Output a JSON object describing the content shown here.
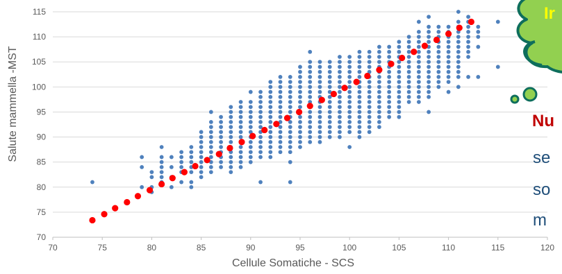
{
  "chart_data": {
    "type": "scatter",
    "xlabel": "Cellule Somatiche - SCS",
    "ylabel": "Salute mammella -MST",
    "xlim": [
      70,
      120
    ],
    "ylim": [
      70,
      115
    ],
    "x_ticks": [
      70,
      75,
      80,
      85,
      90,
      95,
      100,
      105,
      110,
      115,
      120
    ],
    "y_ticks": [
      70,
      75,
      80,
      85,
      90,
      95,
      100,
      105,
      110,
      115
    ],
    "grid": "horizontal",
    "series": [
      {
        "kind": "observed",
        "color": "#4f81bd",
        "columns": [
          {
            "x": 74,
            "y": [
              81
            ]
          },
          {
            "x": 79,
            "y": [
              80,
              84,
              86
            ]
          },
          {
            "x": 80,
            "y": [
              79,
              80,
              82,
              83
            ]
          },
          {
            "x": 81,
            "y": [
              81,
              82,
              83,
              84,
              85,
              86,
              88
            ]
          },
          {
            "x": 82,
            "y": [
              80,
              82,
              84,
              86
            ]
          },
          {
            "x": 83,
            "y": [
              81,
              83,
              84,
              85,
              86,
              87
            ]
          },
          {
            "x": 84,
            "y": [
              80,
              81,
              83,
              84,
              85,
              86,
              87,
              88
            ]
          },
          {
            "x": 85,
            "y": [
              82,
              83,
              84,
              85,
              86,
              87,
              88,
              89,
              90,
              91
            ]
          },
          {
            "x": 86,
            "y": [
              83,
              84,
              85,
              86,
              87,
              88,
              89,
              90,
              91,
              92,
              93,
              95
            ]
          },
          {
            "x": 87,
            "y": [
              84,
              85,
              86,
              87,
              88,
              89,
              90,
              91,
              92,
              93,
              94
            ]
          },
          {
            "x": 88,
            "y": [
              83,
              84,
              85,
              86,
              87,
              88,
              89,
              90,
              91,
              92,
              93,
              94,
              95,
              96
            ]
          },
          {
            "x": 89,
            "y": [
              84,
              85,
              86,
              87,
              88,
              89,
              90,
              91,
              92,
              93,
              94,
              95,
              96,
              97
            ]
          },
          {
            "x": 90,
            "y": [
              85,
              86,
              87,
              88,
              89,
              90,
              91,
              92,
              93,
              94,
              95,
              96,
              97,
              99
            ]
          },
          {
            "x": 91,
            "y": [
              81,
              86,
              87,
              88,
              89,
              90,
              91,
              92,
              93,
              94,
              95,
              96,
              97,
              98,
              99
            ]
          },
          {
            "x": 92,
            "y": [
              86,
              87,
              88,
              89,
              90,
              91,
              92,
              93,
              94,
              95,
              96,
              97,
              98,
              99,
              100,
              101
            ]
          },
          {
            "x": 93,
            "y": [
              87,
              88,
              89,
              90,
              91,
              92,
              93,
              94,
              95,
              96,
              97,
              98,
              99,
              100,
              101,
              102
            ]
          },
          {
            "x": 94,
            "y": [
              81,
              85,
              87,
              88,
              89,
              90,
              91,
              92,
              93,
              94,
              95,
              96,
              97,
              98,
              99,
              100,
              101,
              102
            ]
          },
          {
            "x": 95,
            "y": [
              88,
              89,
              90,
              91,
              92,
              93,
              94,
              95,
              96,
              97,
              98,
              99,
              100,
              101,
              102,
              103,
              104
            ]
          },
          {
            "x": 96,
            "y": [
              89,
              90,
              91,
              92,
              93,
              94,
              95,
              96,
              97,
              98,
              99,
              100,
              101,
              102,
              103,
              104,
              105,
              107
            ]
          },
          {
            "x": 97,
            "y": [
              89,
              90,
              91,
              92,
              93,
              94,
              95,
              96,
              97,
              98,
              99,
              100,
              101,
              102,
              103,
              104,
              105
            ]
          },
          {
            "x": 98,
            "y": [
              90,
              91,
              92,
              93,
              94,
              95,
              96,
              97,
              98,
              99,
              100,
              101,
              102,
              103,
              104,
              105
            ]
          },
          {
            "x": 99,
            "y": [
              90,
              91,
              92,
              93,
              94,
              95,
              96,
              97,
              98,
              99,
              100,
              101,
              102,
              103,
              104,
              105,
              106
            ]
          },
          {
            "x": 100,
            "y": [
              88,
              91,
              92,
              93,
              94,
              95,
              96,
              97,
              98,
              99,
              100,
              101,
              102,
              103,
              104,
              105,
              106
            ]
          },
          {
            "x": 101,
            "y": [
              90,
              91,
              92,
              93,
              94,
              95,
              96,
              97,
              98,
              99,
              100,
              101,
              102,
              103,
              104,
              105,
              106,
              107
            ]
          },
          {
            "x": 102,
            "y": [
              91,
              92,
              93,
              94,
              95,
              96,
              97,
              98,
              99,
              100,
              101,
              102,
              103,
              104,
              105,
              106,
              107
            ]
          },
          {
            "x": 103,
            "y": [
              92,
              93,
              94,
              95,
              96,
              97,
              98,
              99,
              100,
              101,
              102,
              103,
              104,
              105,
              106,
              107,
              108
            ]
          },
          {
            "x": 104,
            "y": [
              94,
              95,
              96,
              97,
              98,
              99,
              100,
              101,
              102,
              103,
              104,
              105,
              106,
              107,
              108
            ]
          },
          {
            "x": 105,
            "y": [
              94,
              95,
              96,
              97,
              98,
              99,
              100,
              101,
              102,
              103,
              104,
              105,
              106,
              107,
              108,
              109
            ]
          },
          {
            "x": 106,
            "y": [
              97,
              98,
              99,
              100,
              101,
              102,
              103,
              104,
              105,
              106,
              107,
              108,
              109,
              110
            ]
          },
          {
            "x": 107,
            "y": [
              97,
              98,
              99,
              100,
              101,
              102,
              103,
              104,
              105,
              106,
              107,
              108,
              109,
              110,
              111,
              113
            ]
          },
          {
            "x": 108,
            "y": [
              95,
              98,
              99,
              100,
              101,
              102,
              103,
              104,
              105,
              106,
              107,
              108,
              109,
              110,
              111,
              112,
              114
            ]
          },
          {
            "x": 109,
            "y": [
              100,
              101,
              102,
              103,
              104,
              105,
              106,
              107,
              108,
              109,
              110,
              111,
              112
            ]
          },
          {
            "x": 110,
            "y": [
              99,
              101,
              102,
              103,
              104,
              105,
              106,
              107,
              108,
              109,
              110,
              111,
              112
            ]
          },
          {
            "x": 111,
            "y": [
              100,
              102,
              103,
              104,
              105,
              106,
              107,
              108,
              109,
              110,
              111,
              112,
              113,
              115
            ]
          },
          {
            "x": 112,
            "y": [
              102,
              106,
              107,
              108,
              109,
              110,
              111,
              112,
              113,
              114
            ]
          },
          {
            "x": 113,
            "y": [
              102,
              108,
              110,
              111,
              112
            ]
          },
          {
            "x": 115,
            "y": [
              104,
              113
            ]
          }
        ]
      },
      {
        "kind": "fitted",
        "color": "#ff0000",
        "x": [
          74,
          75.2,
          76.3,
          77.5,
          78.6,
          79.8,
          81,
          82.1,
          83.3,
          84.4,
          85.6,
          86.8,
          87.9,
          89.1,
          90.2,
          91.4,
          92.6,
          93.7,
          94.9,
          96,
          97.2,
          98.4,
          99.5,
          100.7,
          101.8,
          103,
          104.2,
          105.3,
          106.5,
          107.6,
          108.8,
          110,
          111.1,
          112.3
        ],
        "y": [
          73.4,
          74.6,
          75.8,
          77,
          78.2,
          79.4,
          80.6,
          81.8,
          83,
          84.2,
          85.4,
          86.6,
          87.8,
          89,
          90.2,
          91.4,
          92.6,
          93.8,
          95,
          96.2,
          97.4,
          98.6,
          99.8,
          101,
          102.2,
          103.4,
          104.6,
          105.8,
          107,
          108.2,
          109.4,
          110.6,
          111.8,
          113
        ]
      }
    ]
  },
  "callout": {
    "title_fragment": "Ir",
    "body_bold_fragment": "Nu",
    "body_lines": [
      "se",
      "so",
      "m"
    ]
  }
}
